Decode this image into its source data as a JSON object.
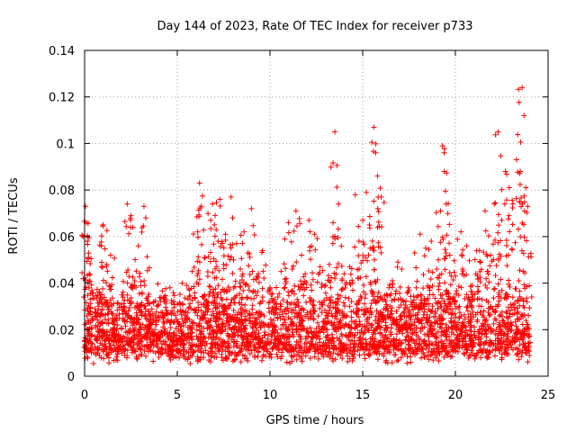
{
  "chart_data": {
    "type": "scatter",
    "title": "Day 144 of 2023, Rate Of TEC Index for receiver p733",
    "xlabel": "GPS time / hours",
    "ylabel": "ROTI / TECUs",
    "xlim": [
      0,
      25
    ],
    "ylim": [
      0,
      0.14
    ],
    "xticks": [
      "0",
      "5",
      "10",
      "15",
      "20",
      "25"
    ],
    "yticks": [
      "0",
      "0.02",
      "0.04",
      "0.06",
      "0.08",
      "0.1",
      "0.12",
      "0.14"
    ],
    "grid": true,
    "marker": "+",
    "marker_color": "#ff0000",
    "series": [
      {
        "x": [
          0.05,
          0.1,
          0.15,
          0.2,
          0.25,
          0.3,
          0.6,
          0.8,
          0.9,
          1.0,
          1.2,
          1.4,
          1.7,
          2.0,
          2.3,
          2.5,
          2.6,
          2.7,
          2.9,
          3.2,
          3.3,
          3.5,
          3.8,
          4.3,
          4.6,
          5.0,
          5.3,
          5.5,
          5.8,
          6.1,
          6.2,
          6.3,
          6.5,
          6.8,
          6.9,
          7.0,
          7.2,
          7.3,
          7.5,
          7.6,
          7.9,
          8.2,
          8.4,
          8.6,
          8.8,
          9.0,
          9.3,
          9.6,
          10.0,
          10.3,
          10.6,
          10.8,
          11.0,
          11.2,
          11.4,
          11.7,
          11.9,
          12.1,
          12.4,
          12.7,
          13.0,
          13.2,
          13.4,
          13.5,
          13.7,
          14.0,
          14.3,
          14.6,
          14.8,
          15.0,
          15.2,
          15.4,
          15.6,
          15.7,
          15.8,
          16.0,
          16.3,
          16.6,
          16.9,
          17.2,
          17.5,
          17.8,
          18.1,
          18.4,
          18.7,
          19.0,
          19.2,
          19.3,
          19.4,
          19.5,
          19.7,
          20.0,
          20.3,
          20.6,
          20.9,
          21.1,
          21.3,
          21.6,
          21.9,
          22.1,
          22.3,
          22.5,
          22.7,
          22.9,
          23.1,
          23.3,
          23.5,
          23.6,
          23.7,
          23.8,
          23.9
        ],
        "y": [
          0.073,
          0.066,
          0.058,
          0.051,
          0.044,
          0.033,
          0.021,
          0.036,
          0.056,
          0.065,
          0.048,
          0.052,
          0.026,
          0.031,
          0.074,
          0.069,
          0.064,
          0.041,
          0.056,
          0.073,
          0.068,
          0.022,
          0.026,
          0.034,
          0.038,
          0.031,
          0.028,
          0.039,
          0.045,
          0.062,
          0.083,
          0.073,
          0.051,
          0.067,
          0.074,
          0.065,
          0.058,
          0.076,
          0.048,
          0.061,
          0.077,
          0.057,
          0.046,
          0.062,
          0.053,
          0.072,
          0.043,
          0.054,
          0.038,
          0.031,
          0.045,
          0.059,
          0.066,
          0.046,
          0.071,
          0.052,
          0.044,
          0.067,
          0.061,
          0.047,
          0.039,
          0.048,
          0.066,
          0.105,
          0.074,
          0.044,
          0.047,
          0.078,
          0.058,
          0.067,
          0.079,
          0.055,
          0.107,
          0.096,
          0.086,
          0.077,
          0.035,
          0.041,
          0.049,
          0.032,
          0.037,
          0.053,
          0.061,
          0.055,
          0.058,
          0.046,
          0.071,
          0.099,
          0.088,
          0.074,
          0.052,
          0.043,
          0.062,
          0.056,
          0.039,
          0.044,
          0.054,
          0.071,
          0.052,
          0.074,
          0.105,
          0.067,
          0.088,
          0.081,
          0.074,
          0.093,
          0.088,
          0.124,
          0.112,
          0.081,
          0.073
        ]
      }
    ]
  }
}
